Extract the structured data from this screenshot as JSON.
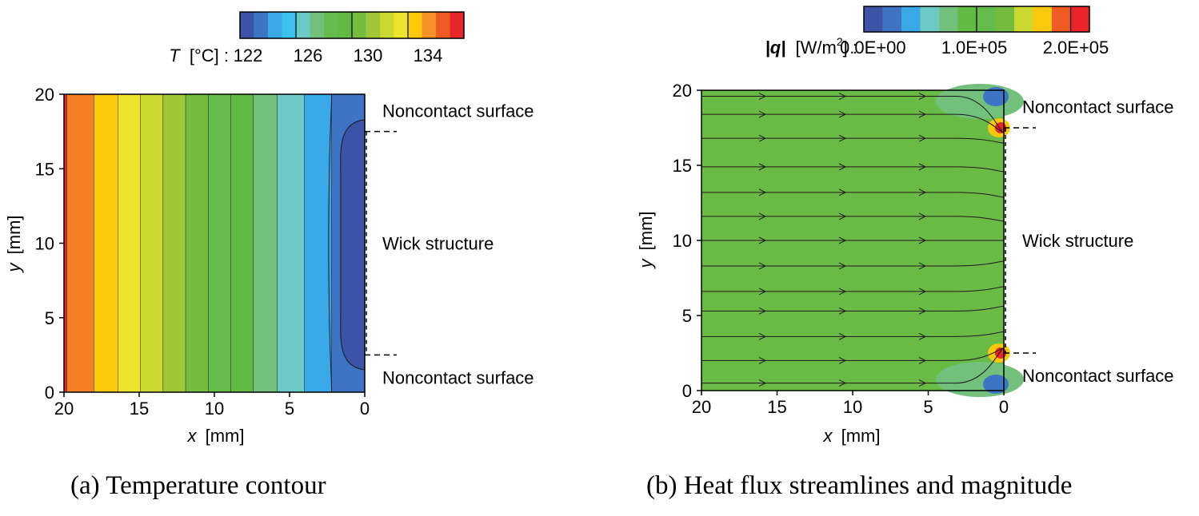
{
  "chart_data": [
    {
      "type": "heatmap",
      "panel": "(a) Temperature contour",
      "caption": "(a) Temperature contour",
      "colorbar": {
        "label_symbol": "T",
        "label_unit": "[°C] :",
        "ticks": [
          "122",
          "126",
          "130",
          "134"
        ],
        "colors": [
          "#3b54a6",
          "#3d74c3",
          "#38a9e6",
          "#3cc2ee",
          "#6cc9c5",
          "#72c07c",
          "#66bb4d",
          "#62b943",
          "#74bc3d",
          "#9fc73a",
          "#cbd82f",
          "#ece42a",
          "#fbc80a",
          "#f69228",
          "#f05a24",
          "#e9252a"
        ]
      },
      "xlabel_symbol": "x",
      "xlabel_unit": "[mm]",
      "ylabel_symbol": "y",
      "ylabel_unit": "[mm]",
      "xlim": [
        20,
        0
      ],
      "ylim": [
        0,
        20
      ],
      "xticks": [
        "20",
        "15",
        "10",
        "5",
        "0"
      ],
      "yticks": [
        "0",
        "5",
        "10",
        "15",
        "20"
      ],
      "bands": [
        {
          "x_from": 20.0,
          "x_to": 19.8,
          "color": "#e9252a"
        },
        {
          "x_from": 19.8,
          "x_to": 18.0,
          "color": "#f47f26"
        },
        {
          "x_from": 18.0,
          "x_to": 16.4,
          "color": "#fbc80a"
        },
        {
          "x_from": 16.4,
          "x_to": 14.9,
          "color": "#ece42a"
        },
        {
          "x_from": 14.9,
          "x_to": 13.4,
          "color": "#cbd82f"
        },
        {
          "x_from": 13.4,
          "x_to": 11.9,
          "color": "#9fc73a"
        },
        {
          "x_from": 11.9,
          "x_to": 10.4,
          "color": "#74bc3d"
        },
        {
          "x_from": 10.4,
          "x_to": 8.9,
          "color": "#66bb4d"
        },
        {
          "x_from": 8.9,
          "x_to": 7.4,
          "color": "#62b943"
        },
        {
          "x_from": 7.4,
          "x_to": 5.8,
          "color": "#72c07c"
        },
        {
          "x_from": 5.8,
          "x_to": 4.0,
          "color": "#6cc9c5"
        },
        {
          "x_from": 4.0,
          "x_to": 2.2,
          "color": "#38a9e6"
        },
        {
          "x_from": 2.2,
          "x_to": 0.0,
          "color": "#3d74c3"
        }
      ],
      "core_region": {
        "color": "#3b54a6",
        "x_from": 1.6,
        "x_to": 0.0,
        "y_from": 1.5,
        "y_to": 18.3
      },
      "annotations": [
        {
          "text": "Noncontact surface",
          "y": 18.9
        },
        {
          "text": "Wick structure",
          "y": 10.0
        },
        {
          "text": "Noncontact surface",
          "y": 1.0
        }
      ],
      "wick_y_range": [
        2.5,
        17.5
      ]
    },
    {
      "type": "heatmap",
      "panel": "(b) Heat flux streamlines and magnitude",
      "caption": "(b) Heat flux streamlines and magnitude",
      "colorbar": {
        "label_symbol": "|q|",
        "label_unit": "[W/m",
        "label_sup": "2",
        "label_tail": "] :",
        "ticks": [
          "0.0E+00",
          "1.0E+05",
          "2.0E+05"
        ],
        "colors": [
          "#3b54a6",
          "#3d74c3",
          "#38a9e6",
          "#6cc9c5",
          "#72c07c",
          "#62b943",
          "#66bb4d",
          "#74bc3d",
          "#cbd82f",
          "#fbc80a",
          "#f05a24",
          "#e9252a"
        ]
      },
      "xlabel_symbol": "x",
      "xlabel_unit": "[mm]",
      "ylabel_symbol": "y",
      "ylabel_unit": "[mm]",
      "xlim": [
        20,
        0
      ],
      "ylim": [
        0,
        20
      ],
      "xticks": [
        "20",
        "15",
        "10",
        "5",
        "0"
      ],
      "yticks": [
        "0",
        "5",
        "10",
        "15",
        "20"
      ],
      "field_color": "#6abb46",
      "streamline_y": [
        19.6,
        18.4,
        16.8,
        14.9,
        13.2,
        11.6,
        10.0,
        8.3,
        6.6,
        5.3,
        3.6,
        2.0,
        0.5
      ],
      "annotations": [
        {
          "text": "Noncontact surface",
          "y": 18.9
        },
        {
          "text": "Wick structure",
          "y": 10.0
        },
        {
          "text": "Noncontact surface",
          "y": 1.0
        }
      ],
      "wick_y_range": [
        2.5,
        17.5
      ]
    }
  ]
}
